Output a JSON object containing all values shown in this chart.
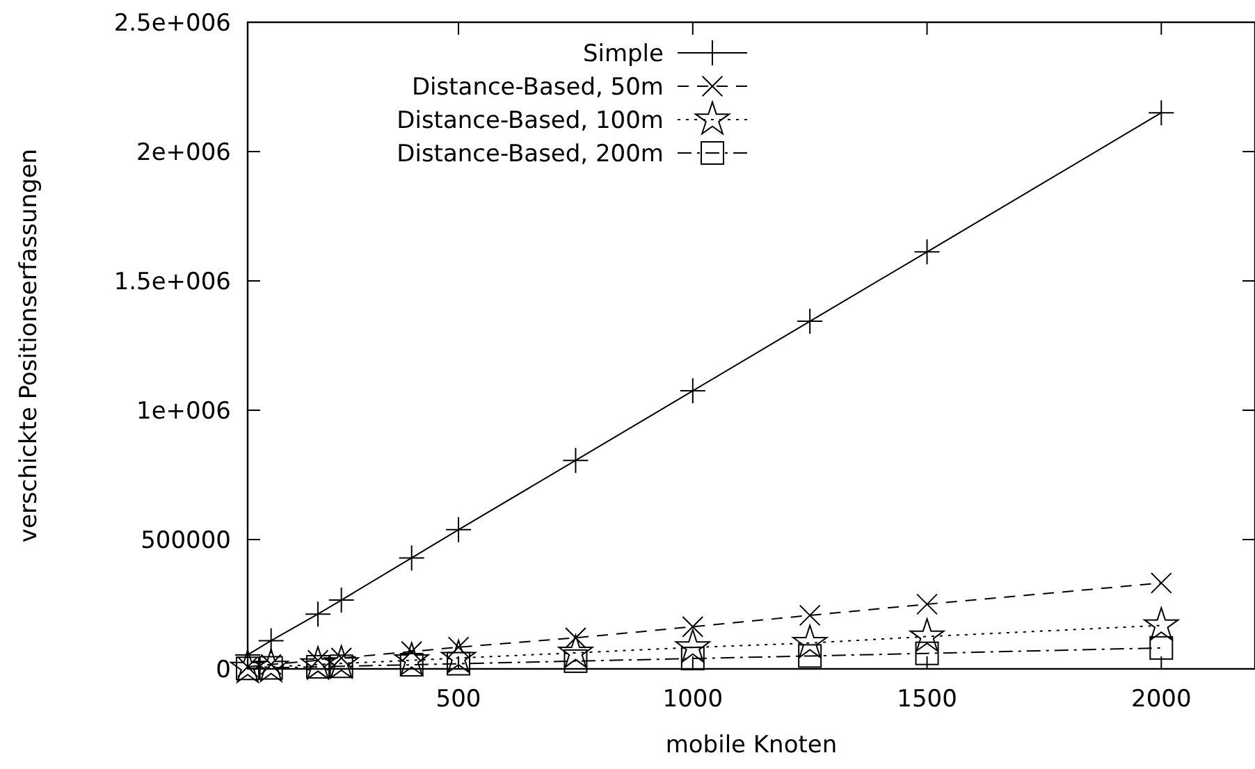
{
  "chart_data": {
    "type": "line",
    "xlabel": "mobile Knoten",
    "ylabel": "verschickte Positionserfassungen",
    "x": [
      50,
      100,
      200,
      250,
      400,
      500,
      750,
      1000,
      1250,
      1500,
      2000
    ],
    "xlim": [
      50,
      2200
    ],
    "xticks": [
      500,
      1000,
      1500,
      2000
    ],
    "ylim": [
      0,
      2500000
    ],
    "yticks": [
      0,
      500000,
      {
        "value": 1000000,
        "label": "1e+006"
      },
      {
        "value": 1500000,
        "label": "1.5e+006"
      },
      {
        "value": 2000000,
        "label": "2e+006"
      },
      {
        "value": 2500000,
        "label": "2.5e+006"
      }
    ],
    "grid": false,
    "legend": "top",
    "series": [
      {
        "name": "Simple",
        "color": "#000000",
        "marker": "cross",
        "line_style": "solid",
        "values": [
          54000,
          109000,
          212000,
          266000,
          429000,
          538000,
          806000,
          1075000,
          1344000,
          1612000,
          2150000
        ]
      },
      {
        "name": "Distance-Based, 50m",
        "color": "#000000",
        "marker": "x",
        "line_style": "dashed",
        "values": [
          8000,
          17000,
          33000,
          42000,
          67000,
          84000,
          120000,
          163000,
          207000,
          250000,
          332000
        ]
      },
      {
        "name": "Distance-Based, 100m",
        "color": "#000000",
        "marker": "star",
        "line_style": "dotted",
        "values": [
          4000,
          8000,
          17000,
          21000,
          33000,
          42000,
          62000,
          83000,
          100000,
          125000,
          168000
        ]
      },
      {
        "name": "Distance-Based, 200m",
        "color": "#000000",
        "marker": "square",
        "line_style": "dashdot",
        "values": [
          2000,
          4000,
          8000,
          10000,
          16000,
          20000,
          30000,
          40000,
          50000,
          60000,
          81000
        ]
      }
    ]
  }
}
